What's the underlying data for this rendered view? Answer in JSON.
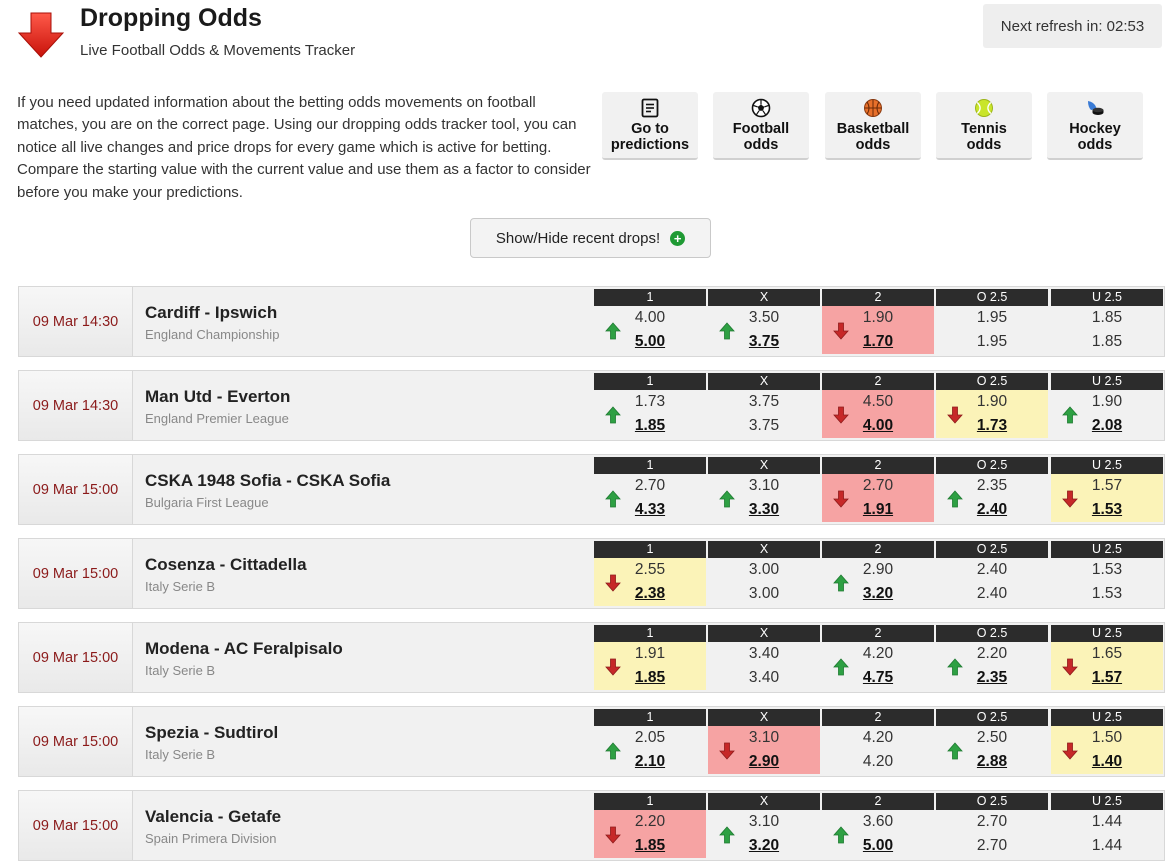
{
  "header": {
    "title": "Dropping Odds",
    "subtitle": "Live Football Odds & Movements Tracker",
    "refresh": "Next refresh in: 02:53"
  },
  "intro": "If you need updated information about the betting odds movements on football matches, you are on the correct page. Using our dropping odds tracker tool, you can notice all live changes and price drops for every game which is active for betting. Compare the starting value with the current value and use them as a factor to consider before you make your predictions.",
  "nav": [
    {
      "id": "predictions",
      "line1": "Go to",
      "line2": "predictions",
      "icon": "document-icon"
    },
    {
      "id": "football",
      "line1": "Football",
      "line2": "odds",
      "icon": "football-icon"
    },
    {
      "id": "basketball",
      "line1": "Basketball",
      "line2": "odds",
      "icon": "basketball-icon"
    },
    {
      "id": "tennis",
      "line1": "Tennis",
      "line2": "odds",
      "icon": "tennis-ball-icon"
    },
    {
      "id": "hockey",
      "line1": "Hockey",
      "line2": "odds",
      "icon": "hockey-icon"
    }
  ],
  "toggle_label": "Show/Hide recent drops!",
  "columns": [
    "1",
    "X",
    "2",
    "O 2.5",
    "U 2.5"
  ],
  "colors": {
    "drop_strong": "#f6a3a3",
    "drop_light": "#fbf3b8",
    "up_arrow": "#2ea043",
    "down_arrow": "#c62828",
    "time_text": "#8b1a1a"
  },
  "matches": [
    {
      "time": "09 Mar 14:30",
      "teams": "Cardiff - Ipswich",
      "league": "England Championship",
      "odds": [
        {
          "open": "4.00",
          "cur": "5.00",
          "dir": "up",
          "hl": ""
        },
        {
          "open": "3.50",
          "cur": "3.75",
          "dir": "up",
          "hl": ""
        },
        {
          "open": "1.90",
          "cur": "1.70",
          "dir": "down",
          "hl": "red"
        },
        {
          "open": "1.95",
          "cur": "1.95",
          "dir": "",
          "hl": ""
        },
        {
          "open": "1.85",
          "cur": "1.85",
          "dir": "",
          "hl": ""
        }
      ]
    },
    {
      "time": "09 Mar 14:30",
      "teams": "Man Utd - Everton",
      "league": "England Premier League",
      "odds": [
        {
          "open": "1.73",
          "cur": "1.85",
          "dir": "up",
          "hl": ""
        },
        {
          "open": "3.75",
          "cur": "3.75",
          "dir": "",
          "hl": ""
        },
        {
          "open": "4.50",
          "cur": "4.00",
          "dir": "down",
          "hl": "red"
        },
        {
          "open": "1.90",
          "cur": "1.73",
          "dir": "down",
          "hl": "yellow"
        },
        {
          "open": "1.90",
          "cur": "2.08",
          "dir": "up",
          "hl": ""
        }
      ]
    },
    {
      "time": "09 Mar 15:00",
      "teams": "CSKA 1948 Sofia - CSKA Sofia",
      "league": "Bulgaria First League",
      "odds": [
        {
          "open": "2.70",
          "cur": "4.33",
          "dir": "up",
          "hl": ""
        },
        {
          "open": "3.10",
          "cur": "3.30",
          "dir": "up",
          "hl": ""
        },
        {
          "open": "2.70",
          "cur": "1.91",
          "dir": "down",
          "hl": "red"
        },
        {
          "open": "2.35",
          "cur": "2.40",
          "dir": "up",
          "hl": ""
        },
        {
          "open": "1.57",
          "cur": "1.53",
          "dir": "down",
          "hl": "yellow"
        }
      ]
    },
    {
      "time": "09 Mar 15:00",
      "teams": "Cosenza - Cittadella",
      "league": "Italy Serie B",
      "odds": [
        {
          "open": "2.55",
          "cur": "2.38",
          "dir": "down",
          "hl": "yellow"
        },
        {
          "open": "3.00",
          "cur": "3.00",
          "dir": "",
          "hl": ""
        },
        {
          "open": "2.90",
          "cur": "3.20",
          "dir": "up",
          "hl": ""
        },
        {
          "open": "2.40",
          "cur": "2.40",
          "dir": "",
          "hl": ""
        },
        {
          "open": "1.53",
          "cur": "1.53",
          "dir": "",
          "hl": ""
        }
      ]
    },
    {
      "time": "09 Mar 15:00",
      "teams": "Modena - AC Feralpisalo",
      "league": "Italy Serie B",
      "odds": [
        {
          "open": "1.91",
          "cur": "1.85",
          "dir": "down",
          "hl": "yellow"
        },
        {
          "open": "3.40",
          "cur": "3.40",
          "dir": "",
          "hl": ""
        },
        {
          "open": "4.20",
          "cur": "4.75",
          "dir": "up",
          "hl": ""
        },
        {
          "open": "2.20",
          "cur": "2.35",
          "dir": "up",
          "hl": ""
        },
        {
          "open": "1.65",
          "cur": "1.57",
          "dir": "down",
          "hl": "yellow"
        }
      ]
    },
    {
      "time": "09 Mar 15:00",
      "teams": "Spezia - Sudtirol",
      "league": "Italy Serie B",
      "odds": [
        {
          "open": "2.05",
          "cur": "2.10",
          "dir": "up",
          "hl": ""
        },
        {
          "open": "3.10",
          "cur": "2.90",
          "dir": "down",
          "hl": "red"
        },
        {
          "open": "4.20",
          "cur": "4.20",
          "dir": "",
          "hl": ""
        },
        {
          "open": "2.50",
          "cur": "2.88",
          "dir": "up",
          "hl": ""
        },
        {
          "open": "1.50",
          "cur": "1.40",
          "dir": "down",
          "hl": "yellow"
        }
      ]
    },
    {
      "time": "09 Mar 15:00",
      "teams": "Valencia - Getafe",
      "league": "Spain Primera Division",
      "odds": [
        {
          "open": "2.20",
          "cur": "1.85",
          "dir": "down",
          "hl": "red"
        },
        {
          "open": "3.10",
          "cur": "3.20",
          "dir": "up",
          "hl": ""
        },
        {
          "open": "3.60",
          "cur": "5.00",
          "dir": "up",
          "hl": ""
        },
        {
          "open": "2.70",
          "cur": "2.70",
          "dir": "",
          "hl": ""
        },
        {
          "open": "1.44",
          "cur": "1.44",
          "dir": "",
          "hl": ""
        }
      ]
    }
  ]
}
